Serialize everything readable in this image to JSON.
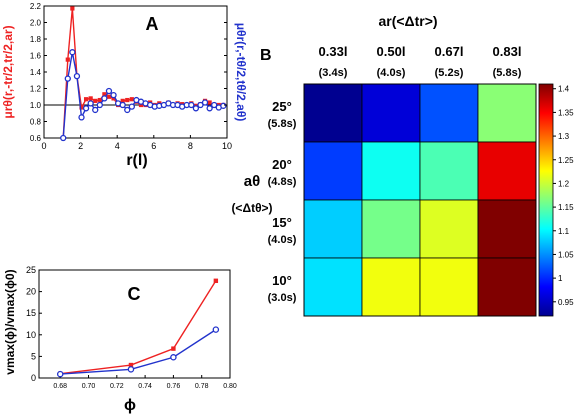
{
  "chart_data": [
    {
      "panel": "A",
      "type": "line",
      "xlabel": "r(l)",
      "ylabel_left": "μrθ(r,-tr/2,tr/2,ar)",
      "ylabel_right": "μθr(r,-tθ/2,tθ/2,aθ)",
      "xlim": [
        0,
        10
      ],
      "ylim": [
        0.6,
        2.2
      ],
      "xticks": [
        0,
        2,
        4,
        6,
        8,
        10
      ],
      "yticks": [
        0.6,
        0.8,
        1.0,
        1.2,
        1.4,
        1.6,
        1.8,
        2.0,
        2.2
      ],
      "ytick_labels": [
        "0.6",
        "0.8",
        "1.0",
        "1.2",
        "1.4",
        "1.6",
        "1.8",
        "2.0",
        "2.2"
      ],
      "reference_line": 1.0,
      "series": [
        {
          "color": "#ee2222",
          "marker": "square",
          "x": [
            1.05,
            1.3,
            1.55,
            1.8,
            2.05,
            2.3,
            2.55,
            2.8,
            3.05,
            3.3,
            3.55,
            3.8,
            4.05,
            4.3,
            4.55,
            4.8,
            5.05,
            5.3,
            5.55,
            5.8,
            6.05,
            6.3,
            6.55,
            6.8,
            7.05,
            7.3,
            7.55,
            7.8,
            8.05,
            8.3,
            8.55,
            8.8,
            9.05,
            9.3,
            9.55,
            9.8
          ],
          "y": [
            0.6,
            1.55,
            2.17,
            1.35,
            0.97,
            1.07,
            1.08,
            1.05,
            1.06,
            1.13,
            1.1,
            1.08,
            1.0,
            1.05,
            1.06,
            1.07,
            1.04,
            1.0,
            1.0,
            1.03,
            1.0,
            1.02,
            1.0,
            1.03,
            1.0,
            1.02,
            1.01,
            1.0,
            1.02,
            0.99,
            1.01,
            1.05,
            1.03,
            0.99,
            1.0,
            1.0
          ]
        },
        {
          "color": "#2233cc",
          "marker": "circle",
          "x": [
            1.05,
            1.3,
            1.55,
            1.8,
            2.05,
            2.3,
            2.55,
            2.8,
            3.05,
            3.3,
            3.55,
            3.8,
            4.05,
            4.3,
            4.55,
            4.8,
            5.05,
            5.3,
            5.55,
            5.8,
            6.05,
            6.3,
            6.55,
            6.8,
            7.05,
            7.3,
            7.55,
            7.8,
            8.05,
            8.3,
            8.55,
            8.8,
            9.05,
            9.3,
            9.55,
            9.8
          ],
          "y": [
            0.6,
            1.32,
            1.64,
            1.35,
            0.85,
            0.96,
            1.02,
            0.94,
            1.0,
            1.08,
            1.17,
            1.12,
            1.02,
            1.0,
            0.94,
            0.98,
            1.06,
            1.04,
            1.02,
            1.0,
            0.98,
            0.99,
            1.0,
            1.02,
            1.0,
            1.0,
            0.98,
            1.0,
            1.0,
            0.96,
            1.0,
            1.03,
            0.96,
            1.0,
            0.97,
            0.99
          ]
        }
      ]
    },
    {
      "panel": "B",
      "type": "heatmap",
      "column_axis_label": "ar(<Δtr>)",
      "row_axis_label": "aθ",
      "row_axis_sublabel": "(<Δtθ>)",
      "columns": [
        {
          "label": "0.33l",
          "sub": "(3.4s)"
        },
        {
          "label": "0.50l",
          "sub": "(4.0s)"
        },
        {
          "label": "0.67l",
          "sub": "(5.2s)"
        },
        {
          "label": "0.83l",
          "sub": "(5.8s)"
        }
      ],
      "rows": [
        {
          "label": "25°",
          "sub": "(5.8s)"
        },
        {
          "label": "20°",
          "sub": "(4.8s)"
        },
        {
          "label": "15°",
          "sub": "(4.0s)"
        },
        {
          "label": "10°",
          "sub": "(3.0s)"
        }
      ],
      "values": [
        [
          0.92,
          0.96,
          1.02,
          1.17
        ],
        [
          1.01,
          1.11,
          1.14,
          1.36
        ],
        [
          1.08,
          1.16,
          1.21,
          1.41
        ],
        [
          1.09,
          1.22,
          1.22,
          1.41
        ]
      ],
      "colorbar": {
        "min": 0.92,
        "max": 1.41,
        "ticks": [
          0.95,
          1.0,
          1.05,
          1.1,
          1.15,
          1.2,
          1.25,
          1.3,
          1.35,
          1.4
        ],
        "tick_labels": [
          "0.95",
          "1",
          "1.05",
          "1.1",
          "1.15",
          "1.2",
          "1.25",
          "1.3",
          "1.35",
          "1.4"
        ]
      }
    },
    {
      "panel": "C",
      "type": "line",
      "xlabel": "ϕ",
      "ylabel": "vmax(ϕ)/vmax(ϕ0)",
      "xlim": [
        0.665,
        0.8
      ],
      "ylim": [
        0,
        25
      ],
      "xticks": [
        0.68,
        0.7,
        0.72,
        0.74,
        0.76,
        0.78,
        0.8
      ],
      "xtick_labels": [
        "0.68",
        "0.70",
        "0.72",
        "0.74",
        "0.76",
        "0.78",
        "0.80"
      ],
      "yticks": [
        0,
        5,
        10,
        15,
        20,
        25
      ],
      "series": [
        {
          "color": "#ee2222",
          "marker": "square",
          "x": [
            0.68,
            0.73,
            0.76,
            0.79
          ],
          "y": [
            1.0,
            3.0,
            6.8,
            22.5
          ]
        },
        {
          "color": "#2233cc",
          "marker": "circle",
          "x": [
            0.68,
            0.73,
            0.76,
            0.79
          ],
          "y": [
            0.9,
            2.0,
            4.8,
            11.2
          ]
        }
      ]
    }
  ]
}
